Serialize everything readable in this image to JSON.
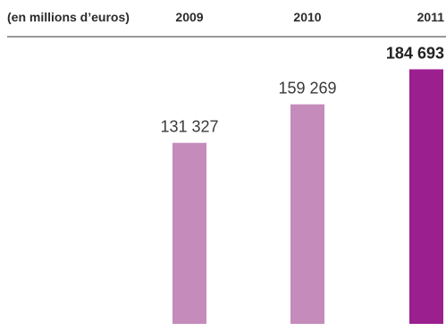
{
  "chart_data": {
    "type": "bar",
    "unit_label": "(en millions d’euros)",
    "categories": [
      "2009",
      "2010",
      "2011"
    ],
    "values": [
      131327,
      159269,
      184693
    ],
    "value_labels": [
      "131 327",
      "159 269",
      "184 693"
    ],
    "colors": [
      "#c48bbb",
      "#c48bbb",
      "#9b1f8f"
    ],
    "highlight": "2011",
    "grid": false,
    "legend": "none"
  }
}
